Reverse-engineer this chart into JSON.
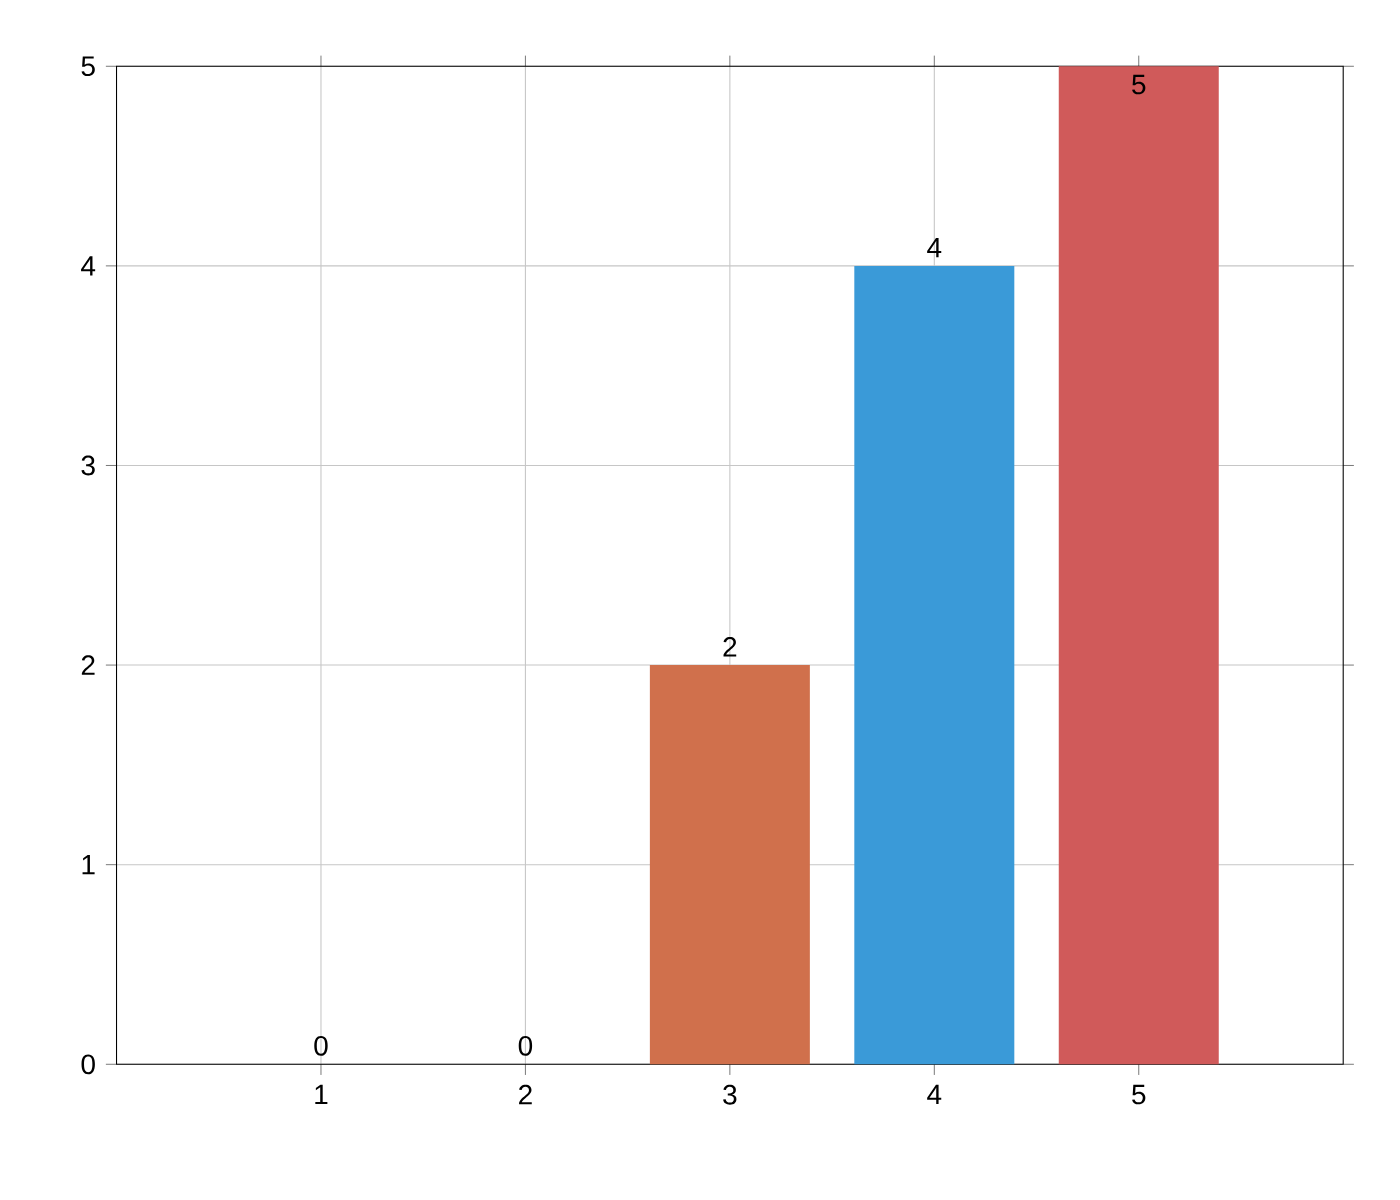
{
  "chart_data": {
    "type": "bar",
    "categories": [
      "1",
      "2",
      "3",
      "4",
      "5"
    ],
    "values": [
      0,
      0,
      2,
      4,
      5
    ],
    "colors": [
      null,
      null,
      "#d0704c",
      "#3a9ad8",
      "#d05a5a"
    ],
    "ylim": [
      0,
      5
    ],
    "yticks": [
      0,
      1,
      2,
      3,
      4,
      5
    ],
    "grid": true,
    "data_labels": true
  }
}
